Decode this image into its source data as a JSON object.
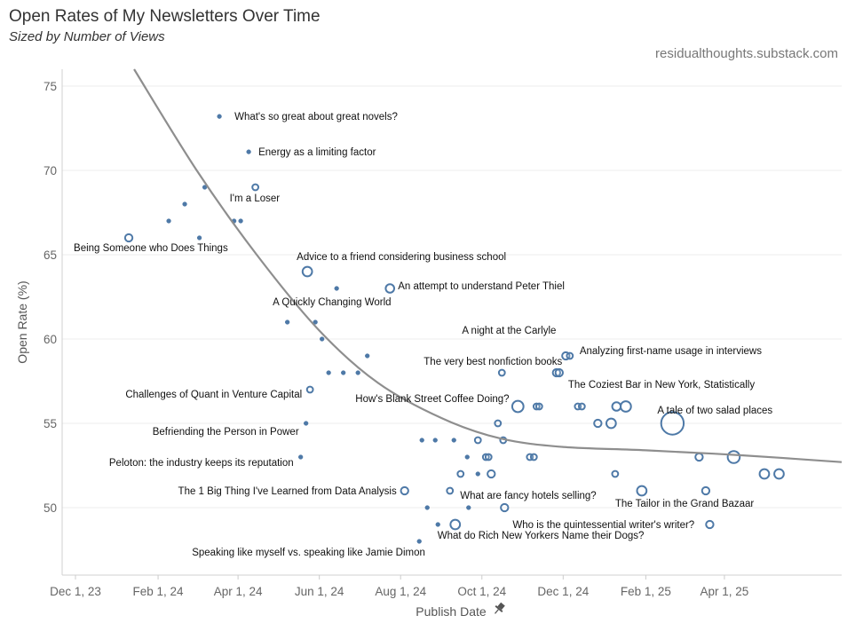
{
  "header": {
    "title": "Open Rates of My Newsletters Over Time",
    "subtitle": "Sized by Number of Views",
    "source": "residualthoughts.substack.com"
  },
  "chart_data": {
    "type": "scatter",
    "title": "Open Rates of My Newsletters Over Time",
    "subtitle": "Sized by Number of Views",
    "xlabel": "Publish Date",
    "ylabel": "Open Rate (%)",
    "x_ticks": [
      "2023-12-01",
      "2024-02-01",
      "2024-04-01",
      "2024-06-01",
      "2024-08-01",
      "2024-10-01",
      "2024-12-01",
      "2025-02-01",
      "2025-04-01"
    ],
    "x_tick_labels": [
      "Dec 1, 23",
      "Feb 1, 24",
      "Apr 1, 24",
      "Jun 1, 24",
      "Aug 1, 24",
      "Oct 1, 24",
      "Dec 1, 24",
      "Feb 1, 25",
      "Apr 1, 25"
    ],
    "xlim": [
      "2023-11-21",
      "2025-06-28"
    ],
    "ylim": [
      46,
      76
    ],
    "y_ticks": [
      50,
      55,
      60,
      65,
      70,
      75
    ],
    "grid": "horizontal",
    "trend_line": [
      {
        "x": "2024-01-14",
        "y": 76
      },
      {
        "x": "2024-03-01",
        "y": 70
      },
      {
        "x": "2024-04-15",
        "y": 65
      },
      {
        "x": "2024-06-01",
        "y": 60.5
      },
      {
        "x": "2024-07-15",
        "y": 57.4
      },
      {
        "x": "2024-09-01",
        "y": 55.3
      },
      {
        "x": "2024-10-15",
        "y": 54.1
      },
      {
        "x": "2024-12-01",
        "y": 53.6
      },
      {
        "x": "2025-02-01",
        "y": 53.4
      },
      {
        "x": "2025-04-15",
        "y": 53.1
      },
      {
        "x": "2025-06-28",
        "y": 52.7
      }
    ],
    "points": [
      {
        "x": "2024-01-10",
        "y": 66.0,
        "views": 3,
        "label": "Being Someone who Does Things"
      },
      {
        "x": "2024-02-09",
        "y": 67.0,
        "views": 1,
        "label": ""
      },
      {
        "x": "2024-02-21",
        "y": 68.0,
        "views": 1,
        "label": ""
      },
      {
        "x": "2024-03-07",
        "y": 69.0,
        "views": 1,
        "label": ""
      },
      {
        "x": "2024-03-03",
        "y": 66.0,
        "views": 1,
        "label": ""
      },
      {
        "x": "2024-03-18",
        "y": 73.2,
        "views": 1,
        "label": "What's so great about great novels?"
      },
      {
        "x": "2024-03-29",
        "y": 67.0,
        "views": 1,
        "label": ""
      },
      {
        "x": "2024-04-03",
        "y": 67.0,
        "views": 1,
        "label": ""
      },
      {
        "x": "2024-04-09",
        "y": 71.1,
        "views": 1,
        "label": "Energy as a limiting factor"
      },
      {
        "x": "2024-04-14",
        "y": 69.0,
        "views": 2,
        "label": "I'm a Loser"
      },
      {
        "x": "2024-05-08",
        "y": 61.0,
        "views": 1,
        "label": ""
      },
      {
        "x": "2024-05-22",
        "y": 55.0,
        "views": 1,
        "label": "Befriending the Person in Power"
      },
      {
        "x": "2024-05-18",
        "y": 53.0,
        "views": 1,
        "label": "Peloton: the industry keeps its reputation"
      },
      {
        "x": "2024-05-23",
        "y": 64.0,
        "views": 5,
        "label": "Advice to a friend considering business school"
      },
      {
        "x": "2024-05-25",
        "y": 57.0,
        "views": 2,
        "label": "Challenges of Quant in Venture Capital"
      },
      {
        "x": "2024-05-29",
        "y": 61.0,
        "views": 1,
        "label": ""
      },
      {
        "x": "2024-06-03",
        "y": 60.0,
        "views": 1,
        "label": ""
      },
      {
        "x": "2024-06-08",
        "y": 58.0,
        "views": 1,
        "label": ""
      },
      {
        "x": "2024-06-14",
        "y": 63.0,
        "views": 1,
        "label": "A Quickly Changing World"
      },
      {
        "x": "2024-06-19",
        "y": 58.0,
        "views": 1,
        "label": ""
      },
      {
        "x": "2024-06-30",
        "y": 58.0,
        "views": 1,
        "label": ""
      },
      {
        "x": "2024-07-07",
        "y": 59.0,
        "views": 1,
        "label": ""
      },
      {
        "x": "2024-07-24",
        "y": 63.0,
        "views": 4,
        "label": "An attempt to understand Peter Thiel"
      },
      {
        "x": "2024-08-04",
        "y": 51.0,
        "views": 3,
        "label": "The 1 Big Thing I've Learned from Data Analysis"
      },
      {
        "x": "2024-08-15",
        "y": 48.0,
        "views": 1,
        "label": "Speaking like myself vs. speaking like Jamie Dimon"
      },
      {
        "x": "2024-08-17",
        "y": 54.0,
        "views": 1,
        "label": ""
      },
      {
        "x": "2024-08-21",
        "y": 50.0,
        "views": 1,
        "label": ""
      },
      {
        "x": "2024-08-27",
        "y": 54.0,
        "views": 1,
        "label": ""
      },
      {
        "x": "2024-08-29",
        "y": 49.0,
        "views": 1,
        "label": ""
      },
      {
        "x": "2024-09-07",
        "y": 51.0,
        "views": 2,
        "label": ""
      },
      {
        "x": "2024-09-10",
        "y": 54.0,
        "views": 1,
        "label": ""
      },
      {
        "x": "2024-09-11",
        "y": 49.0,
        "views": 5,
        "label": "What do Rich New Yorkers Name their Dogs?"
      },
      {
        "x": "2024-09-15",
        "y": 52.0,
        "views": 2,
        "label": ""
      },
      {
        "x": "2024-09-20",
        "y": 53.0,
        "views": 1,
        "label": ""
      },
      {
        "x": "2024-09-21",
        "y": 50.0,
        "views": 1,
        "label": ""
      },
      {
        "x": "2024-09-28",
        "y": 54.0,
        "views": 2,
        "label": ""
      },
      {
        "x": "2024-09-28",
        "y": 52.0,
        "views": 1,
        "label": ""
      },
      {
        "x": "2024-10-04",
        "y": 53.0,
        "views": 2,
        "label": ""
      },
      {
        "x": "2024-10-06",
        "y": 53.0,
        "views": 2,
        "label": ""
      },
      {
        "x": "2024-10-08",
        "y": 52.0,
        "views": 3,
        "label": ""
      },
      {
        "x": "2024-10-13",
        "y": 55.0,
        "views": 2,
        "label": ""
      },
      {
        "x": "2024-10-16",
        "y": 58.0,
        "views": 2,
        "label": "The very best nonfiction books"
      },
      {
        "x": "2024-10-17",
        "y": 54.0,
        "views": 2,
        "label": ""
      },
      {
        "x": "2024-10-18",
        "y": 50.0,
        "views": 3,
        "label": "What are fancy hotels selling?"
      },
      {
        "x": "2024-10-28",
        "y": 56.0,
        "views": 7,
        "label": "How's Blank Street Coffee Doing?"
      },
      {
        "x": "2024-11-06",
        "y": 53.0,
        "views": 2,
        "label": ""
      },
      {
        "x": "2024-11-09",
        "y": 53.0,
        "views": 2,
        "label": ""
      },
      {
        "x": "2024-11-11",
        "y": 56.0,
        "views": 2,
        "label": ""
      },
      {
        "x": "2024-11-13",
        "y": 56.0,
        "views": 2,
        "label": ""
      },
      {
        "x": "2024-11-26",
        "y": 58.0,
        "views": 3,
        "label": "The Coziest Bar in New York, Statistically"
      },
      {
        "x": "2024-11-28",
        "y": 58.0,
        "views": 3,
        "label": ""
      },
      {
        "x": "2024-12-03",
        "y": 59.0,
        "views": 3,
        "label": "A night at the Carlyle"
      },
      {
        "x": "2024-12-06",
        "y": 59.0,
        "views": 2,
        "label": "Analyzing first-name usage in interviews"
      },
      {
        "x": "2024-12-12",
        "y": 56.0,
        "views": 2,
        "label": ""
      },
      {
        "x": "2024-12-15",
        "y": 56.0,
        "views": 2,
        "label": ""
      },
      {
        "x": "2024-12-27",
        "y": 55.0,
        "views": 3,
        "label": ""
      },
      {
        "x": "2025-01-06",
        "y": 55.0,
        "views": 5,
        "label": ""
      },
      {
        "x": "2025-01-09",
        "y": 52.0,
        "views": 2,
        "label": ""
      },
      {
        "x": "2025-01-10",
        "y": 56.0,
        "views": 4,
        "label": ""
      },
      {
        "x": "2025-01-17",
        "y": 56.0,
        "views": 6,
        "label": ""
      },
      {
        "x": "2025-01-29",
        "y": 51.0,
        "views": 5,
        "label": "The Tailor in the Grand Bazaar"
      },
      {
        "x": "2025-02-21",
        "y": 55.0,
        "views": 28,
        "label": "A tale of two salad places"
      },
      {
        "x": "2025-03-13",
        "y": 53.0,
        "views": 3,
        "label": ""
      },
      {
        "x": "2025-03-18",
        "y": 51.0,
        "views": 3,
        "label": ""
      },
      {
        "x": "2025-03-21",
        "y": 49.0,
        "views": 3,
        "label": "Who is the quintessential writer's writer?"
      },
      {
        "x": "2025-04-08",
        "y": 53.0,
        "views": 8,
        "label": ""
      },
      {
        "x": "2025-05-01",
        "y": 52.0,
        "views": 5,
        "label": ""
      },
      {
        "x": "2025-05-12",
        "y": 52.0,
        "views": 5,
        "label": ""
      }
    ]
  },
  "colors": {
    "point": "#4e79a7",
    "trend": "#8e8e8e",
    "grid": "#ececec"
  },
  "icons": {
    "publish_date_pin": "pin-icon"
  }
}
